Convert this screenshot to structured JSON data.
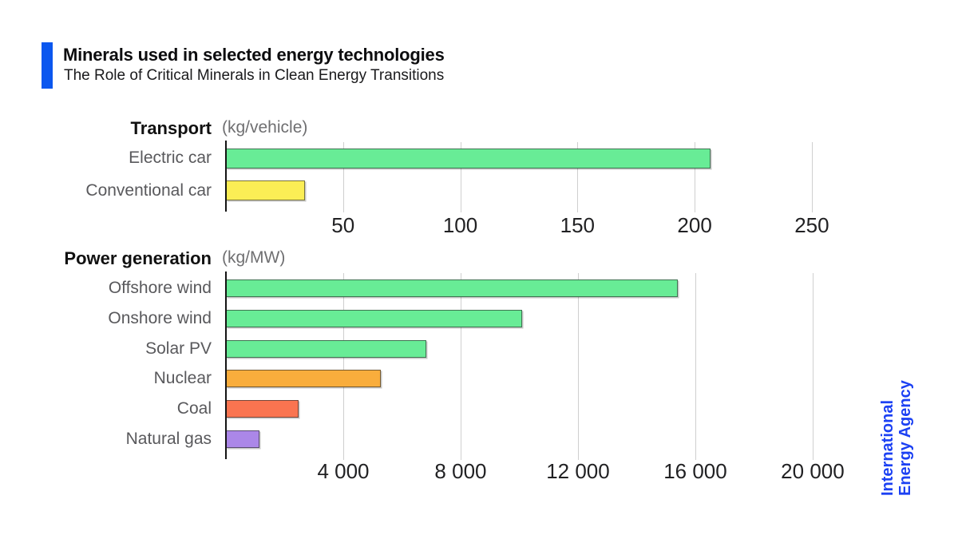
{
  "header": {
    "title": "Minerals used in selected energy technologies",
    "subtitle": "The Role of Critical Minerals in Clean Energy Transitions"
  },
  "branding": {
    "logo_line1": "International",
    "logo_line2": "Energy Agency",
    "logo_color": "#1c41f3",
    "accent_color": "#0b57ef"
  },
  "colors": {
    "clean_tech_green": "#68ec96",
    "conventional_yellow": "#fbee55",
    "nuclear_orange": "#f9ad3c",
    "coal_tomato": "#fa7450",
    "gas_purple": "#ab87e8",
    "gridline": "#cfcfcf",
    "axis": "#141414"
  },
  "chart_data": [
    {
      "type": "bar",
      "orientation": "horizontal",
      "section": "Transport",
      "unit_label": "(kg/vehicle)",
      "categories": [
        "Electric car",
        "Conventional car"
      ],
      "values": [
        206.9,
        33.6
      ],
      "bar_colors": [
        "#68ec96",
        "#fbee55"
      ],
      "x_ticks": [
        50,
        100,
        150,
        200,
        250
      ],
      "x_tick_labels": [
        "50",
        "100",
        "150",
        "200",
        "250"
      ],
      "xlim": [
        0,
        264
      ],
      "grid": true,
      "legend": "none"
    },
    {
      "type": "bar",
      "orientation": "horizontal",
      "section": "Power generation",
      "unit_label": "(kg/MW)",
      "categories": [
        "Offshore wind",
        "Onshore wind",
        "Solar PV",
        "Nuclear",
        "Coal",
        "Natural gas"
      ],
      "values": [
        15409,
        10098,
        6834,
        5279,
        2479,
        1148
      ],
      "bar_colors": [
        "#68ec96",
        "#68ec96",
        "#68ec96",
        "#f9ad3c",
        "#fa7450",
        "#ab87e8"
      ],
      "x_ticks": [
        4000,
        8000,
        12000,
        16000,
        20000
      ],
      "x_tick_labels": [
        "4 000",
        "8 000",
        "12 000",
        "16 000",
        "20 000"
      ],
      "xlim": [
        0,
        21090
      ],
      "grid": true,
      "legend": "none"
    }
  ]
}
